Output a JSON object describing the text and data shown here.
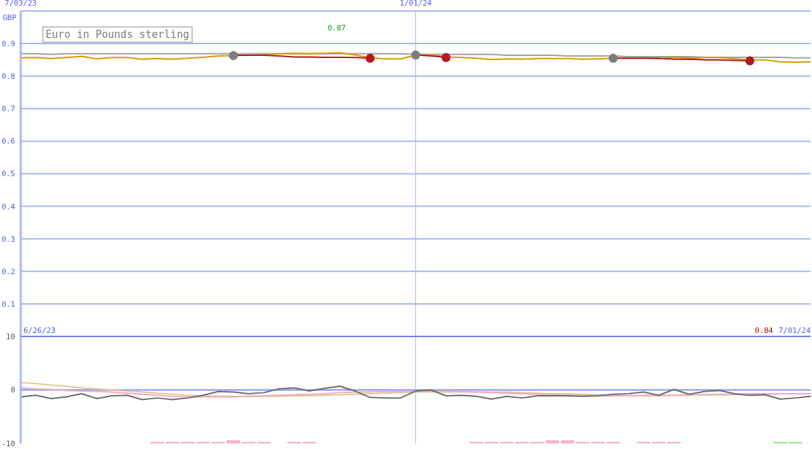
{
  "chart_data": [
    {
      "type": "line",
      "title": "Euro in Pounds sterling",
      "ylabel": "GBP",
      "x": [
        "2023-07-03",
        "2023-07-10",
        "2023-07-17",
        "2023-07-24",
        "2023-07-31",
        "2023-08-07",
        "2023-08-14",
        "2023-08-21",
        "2023-08-28",
        "2023-09-04",
        "2023-09-11",
        "2023-09-18",
        "2023-09-25",
        "2023-10-02",
        "2023-10-09",
        "2023-10-16",
        "2023-10-23",
        "2023-10-30",
        "2023-11-06",
        "2023-11-13",
        "2023-11-20",
        "2023-11-27",
        "2023-12-04",
        "2023-12-11",
        "2023-12-18",
        "2023-12-25",
        "2024-01-01",
        "2024-01-08",
        "2024-01-15",
        "2024-01-22",
        "2024-01-29",
        "2024-02-05",
        "2024-02-12",
        "2024-02-19",
        "2024-02-26",
        "2024-03-04",
        "2024-03-11",
        "2024-03-18",
        "2024-03-25",
        "2024-04-01",
        "2024-04-08",
        "2024-04-15",
        "2024-04-22",
        "2024-04-29",
        "2024-05-06",
        "2024-05-13",
        "2024-05-20",
        "2024-05-27",
        "2024-06-03",
        "2024-06-10",
        "2024-06-17",
        "2024-06-24",
        "2024-07-01"
      ],
      "xlim": [
        "2023-07-03",
        "2024-07-01"
      ],
      "xticks": [
        {
          "value": "2023-07-03",
          "label": "7/03/23"
        },
        {
          "value": "2024-01-01",
          "label": "1/01/24"
        }
      ],
      "ylim": [
        0,
        1
      ],
      "yticks": [
        0.1,
        0.2,
        0.3,
        0.4,
        0.5,
        0.6,
        0.7,
        0.8,
        0.9
      ],
      "grid": "y",
      "ref_lines": [
        {
          "axis": "x",
          "value": "2024-01-01"
        }
      ],
      "series": [
        {
          "color": "#a0a0a0",
          "values": [
            0.869,
            0.869,
            0.867,
            0.869,
            0.869,
            0.869,
            0.869,
            0.869,
            0.869,
            0.869,
            0.869,
            0.869,
            0.869,
            0.869,
            0.869,
            0.869,
            0.869,
            0.869,
            0.869,
            0.869,
            0.869,
            0.869,
            0.869,
            0.869,
            0.869,
            0.869,
            0.867,
            0.867,
            0.867,
            0.867,
            0.867,
            0.867,
            0.864,
            0.864,
            0.864,
            0.864,
            0.862,
            0.862,
            0.862,
            0.862,
            0.86,
            0.86,
            0.86,
            0.86,
            0.86,
            0.858,
            0.858,
            0.858,
            0.858,
            0.858,
            0.858,
            0.856,
            0.856
          ]
        },
        {
          "color": "#dc9600",
          "values": [
            0.856,
            0.857,
            0.854,
            0.857,
            0.861,
            0.853,
            0.857,
            0.857,
            0.852,
            0.854,
            0.852,
            0.855,
            0.858,
            0.862,
            0.863,
            0.864,
            0.865,
            0.869,
            0.87,
            0.869,
            0.87,
            0.872,
            0.865,
            0.856,
            0.853,
            0.853,
            0.864,
            0.866,
            0.859,
            0.857,
            0.855,
            0.851,
            0.853,
            0.852,
            0.854,
            0.854,
            0.854,
            0.852,
            0.853,
            0.855,
            0.855,
            0.855,
            0.853,
            0.858,
            0.855,
            0.857,
            0.857,
            0.853,
            0.85,
            0.85,
            0.844,
            0.843,
            0.844
          ]
        },
        {
          "color": "#a81c1c",
          "values": [
            null,
            null,
            null,
            null,
            null,
            null,
            null,
            null,
            null,
            null,
            null,
            null,
            null,
            null,
            0.864,
            0.864,
            0.864,
            0.862,
            0.859,
            0.859,
            0.858,
            0.858,
            0.857,
            0.855,
            null,
            null,
            0.865,
            0.862,
            0.858,
            null,
            null,
            null,
            null,
            null,
            null,
            null,
            null,
            null,
            null,
            0.855,
            0.855,
            0.855,
            0.855,
            0.852,
            0.852,
            0.85,
            0.85,
            0.848,
            0.847,
            null,
            null,
            null,
            null
          ]
        },
        {
          "type": "scatter",
          "marker": "circle",
          "color": "#7c7c7c",
          "values": [
            null,
            null,
            null,
            null,
            null,
            null,
            null,
            null,
            null,
            null,
            null,
            null,
            null,
            null,
            0.863,
            null,
            null,
            null,
            null,
            null,
            null,
            null,
            null,
            null,
            null,
            null,
            0.865,
            null,
            null,
            null,
            null,
            null,
            null,
            null,
            null,
            null,
            null,
            null,
            null,
            0.855,
            null,
            null,
            null,
            null,
            null,
            null,
            null,
            null,
            null,
            null,
            null,
            null,
            null
          ]
        },
        {
          "type": "scatter",
          "marker": "circle",
          "color": "#b01c1c",
          "values": [
            null,
            null,
            null,
            null,
            null,
            null,
            null,
            null,
            null,
            null,
            null,
            null,
            null,
            null,
            null,
            null,
            null,
            null,
            null,
            null,
            null,
            null,
            null,
            0.855,
            null,
            null,
            null,
            null,
            0.857,
            null,
            null,
            null,
            null,
            null,
            null,
            null,
            null,
            null,
            null,
            null,
            null,
            null,
            null,
            null,
            null,
            null,
            null,
            null,
            0.847,
            null,
            null,
            null,
            null
          ]
        }
      ],
      "annotations": [
        "0.87",
        "6/26/23",
        "0.84",
        "7/01/24"
      ]
    },
    {
      "type": "line",
      "x": [
        "2023-07-03",
        "2023-07-10",
        "2023-07-17",
        "2023-07-24",
        "2023-07-31",
        "2023-08-07",
        "2023-08-14",
        "2023-08-21",
        "2023-08-28",
        "2023-09-04",
        "2023-09-11",
        "2023-09-18",
        "2023-09-25",
        "2023-10-02",
        "2023-10-09",
        "2023-10-16",
        "2023-10-23",
        "2023-10-30",
        "2023-11-06",
        "2023-11-13",
        "2023-11-20",
        "2023-11-27",
        "2023-12-04",
        "2023-12-11",
        "2023-12-18",
        "2023-12-25",
        "2024-01-01",
        "2024-01-08",
        "2024-01-15",
        "2024-01-22",
        "2024-01-29",
        "2024-02-05",
        "2024-02-12",
        "2024-02-19",
        "2024-02-26",
        "2024-03-04",
        "2024-03-11",
        "2024-03-18",
        "2024-03-25",
        "2024-04-01",
        "2024-04-08",
        "2024-04-15",
        "2024-04-22",
        "2024-04-29",
        "2024-05-06",
        "2024-05-13",
        "2024-05-20",
        "2024-05-27",
        "2024-06-03",
        "2024-06-10",
        "2024-06-17",
        "2024-06-24",
        "2024-07-01"
      ],
      "xlim": [
        "2023-07-03",
        "2024-07-01"
      ],
      "ylim": [
        -10,
        10
      ],
      "yticks": [
        -10,
        0,
        10
      ],
      "tick_labels": "y",
      "ref_lines": [
        {
          "axis": "y",
          "value": 0
        },
        {
          "axis": "x",
          "value": "2024-01-01"
        }
      ],
      "series": [
        {
          "type": "bar",
          "values": [
            null,
            null,
            null,
            null,
            null,
            null,
            null,
            null,
            null,
            0.3,
            0.3,
            0.3,
            0.3,
            0.3,
            0.6,
            0.3,
            0.3,
            null,
            0.3,
            0.3,
            null,
            null,
            null,
            null,
            null,
            null,
            null,
            null,
            null,
            null,
            0.3,
            0.3,
            0.3,
            0.3,
            0.3,
            0.6,
            0.6,
            0.3,
            0.3,
            0.3,
            null,
            0.3,
            0.3,
            0.3,
            null,
            null,
            null,
            null,
            null,
            null,
            0.3,
            0.3,
            null
          ],
          "base": [
            null,
            null,
            null,
            null,
            null,
            null,
            null,
            null,
            null,
            -10,
            -10,
            -10,
            -10,
            -10,
            -10,
            -10,
            -10,
            null,
            -10,
            -10,
            null,
            null,
            null,
            null,
            null,
            null,
            null,
            null,
            null,
            null,
            -10,
            -10,
            -10,
            -10,
            -10,
            -10,
            -10,
            -10,
            -10,
            -10,
            null,
            -10,
            -10,
            -10,
            null,
            null,
            null,
            null,
            null,
            null,
            -10,
            -10,
            null
          ],
          "colors": [
            null,
            null,
            null,
            null,
            null,
            null,
            null,
            null,
            null,
            "#f8b4c8",
            "#f8b4c8",
            "#f8b4c8",
            "#f8b4c8",
            "#f8b4c8",
            "#f8b4c8",
            "#f8b4c8",
            "#f8b4c8",
            null,
            "#f8b4c8",
            "#f8b4c8",
            null,
            null,
            null,
            null,
            null,
            null,
            null,
            null,
            null,
            null,
            "#f8b4c8",
            "#f8b4c8",
            "#f8b4c8",
            "#f8b4c8",
            "#f8b4c8",
            "#f8b4c8",
            "#f8b4c8",
            "#f8b4c8",
            "#f8b4c8",
            "#f8b4c8",
            null,
            "#f8b4c8",
            "#f8b4c8",
            "#f8b4c8",
            null,
            null,
            null,
            null,
            null,
            null,
            "#98e898",
            "#98e898",
            null
          ]
        },
        {
          "color": "#e0c896",
          "values": [
            1.4,
            1.2,
            0.9,
            0.7,
            0.4,
            0.2,
            0.0,
            -0.2,
            -0.4,
            -0.6,
            -0.8,
            -1.0,
            -1.1,
            -1.2,
            -1.2,
            -1.2,
            -1.2,
            -1.2,
            -1.1,
            -1.1,
            -1.0,
            -0.9,
            -0.8,
            -0.7,
            -0.6,
            -0.5,
            -0.4,
            -0.4,
            -0.4,
            -0.4,
            -0.4,
            -0.4,
            -0.4,
            -0.5,
            -0.6,
            -0.7,
            -0.7,
            -0.8,
            -0.9,
            -1.0,
            -1.1,
            -1.1,
            -1.1,
            -1.0,
            -1.0,
            -0.9,
            -0.9,
            -0.9,
            -0.8,
            -0.8,
            -0.7,
            -0.7,
            -0.7
          ]
        },
        {
          "color": "#f4a8bc",
          "values": [
            0.4,
            0.2,
            0.1,
            -0.1,
            -0.2,
            -0.3,
            -0.4,
            -0.6,
            -0.8,
            -1.0,
            -1.2,
            -1.3,
            -1.3,
            -1.3,
            -1.3,
            -1.2,
            -1.1,
            -1.0,
            -0.9,
            -0.8,
            -0.7,
            -0.5,
            -0.4,
            -0.4,
            -0.3,
            -0.3,
            -0.2,
            -0.2,
            -0.2,
            -0.3,
            -0.4,
            -0.5,
            -0.6,
            -0.7,
            -0.8,
            -0.9,
            -1.0,
            -1.0,
            -1.1,
            -1.1,
            -1.1,
            -1.0,
            -1.0,
            -1.0,
            -0.9,
            -0.9,
            -0.8,
            -0.8,
            -0.7,
            -0.7,
            -0.7,
            -0.7,
            -0.7
          ]
        },
        {
          "color": "#6c6c6c",
          "values": [
            -1.3,
            -1.0,
            -1.6,
            -1.3,
            -0.7,
            -1.6,
            -1.1,
            -1.0,
            -1.8,
            -1.5,
            -1.8,
            -1.5,
            -1.0,
            -0.3,
            -0.4,
            -0.7,
            -0.5,
            0.2,
            0.4,
            -0.2,
            0.3,
            0.7,
            -0.2,
            -1.4,
            -1.5,
            -1.5,
            -0.2,
            0.0,
            -1.1,
            -1.0,
            -1.2,
            -1.7,
            -1.2,
            -1.5,
            -1.1,
            -1.1,
            -1.1,
            -1.2,
            -1.1,
            -0.8,
            -0.7,
            -0.4,
            -1.0,
            0.1,
            -0.8,
            -0.3,
            -0.1,
            -0.7,
            -1.0,
            -0.9,
            -1.7,
            -1.5,
            -1.2
          ]
        }
      ]
    }
  ]
}
